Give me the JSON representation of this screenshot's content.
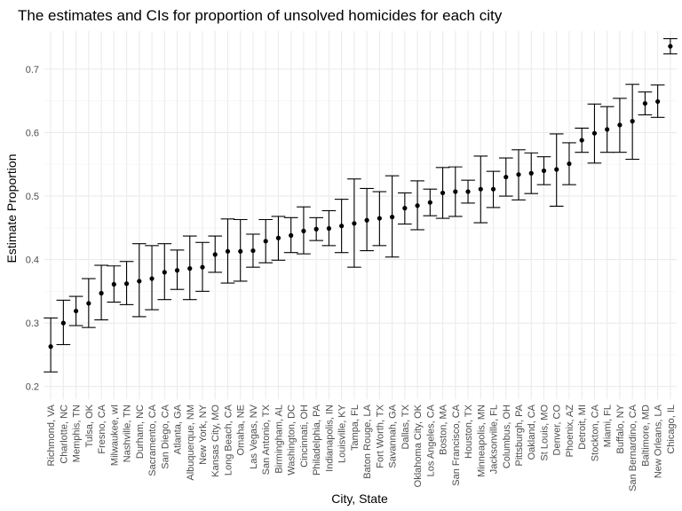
{
  "chart_data": {
    "type": "scatter",
    "title": "The estimates and CIs for proportion of unsolved homicides for each city",
    "xlabel": "City, State",
    "ylabel": "Estimate Proportion",
    "ylim": [
      0.18,
      0.76
    ],
    "yticks": [
      0.2,
      0.3,
      0.4,
      0.5,
      0.6,
      0.7
    ],
    "yticks_labels": [
      "0.2",
      "0.3",
      "0.4",
      "0.5",
      "0.6",
      "0.7"
    ],
    "grid": true,
    "legend": "none",
    "colors": {
      "point": "#000000",
      "errorbar": "#000000",
      "grid_major": "#ebebeb",
      "grid_minor": "#f5f5f5"
    },
    "categories": [
      "Richmond, VA",
      "Charlotte, NC",
      "Memphis, TN",
      "Tulsa, OK",
      "Fresno, CA",
      "Milwaukee, wI",
      "Nashville, TN",
      "Durham, NC",
      "Sacramento, CA",
      "San Diego, CA",
      "Atlanta, GA",
      "Albuquerque, NM",
      "New York, NY",
      "Kansas City, MO",
      "Long Beach, CA",
      "Omaha, NE",
      "Las Vegas, NV",
      "San Antonio, TX",
      "Birmingham, AL",
      "Washington, DC",
      "Cincinnati, OH",
      "Philadelphia, PA",
      "Indianapolis, IN",
      "Louisville, KY",
      "Tampa, FL",
      "Baton Rouge, LA",
      "Fort Worth, TX",
      "Savannah, GA",
      "Dallas, TX",
      "Oklahoma City, OK",
      "Los Angeles, CA",
      "Boston, MA",
      "San Francisco, CA",
      "Houston, TX",
      "Minneapolis, MN",
      "Jacksonville, FL",
      "Columbus, OH",
      "Pittsburgh, PA",
      "Oakland, CA",
      "St Louis, MO",
      "Denver, CO",
      "Phoenix, AZ",
      "Detroit, MI",
      "Stockton, CA",
      "Miami, FL",
      "Buffalo, NY",
      "San Bernardino, CA",
      "Baltimore, MD",
      "New Orleans, LA",
      "Chicago, IL"
    ],
    "series": [
      {
        "estimate": [
          0.263,
          0.3,
          0.319,
          0.331,
          0.347,
          0.361,
          0.362,
          0.366,
          0.37,
          0.38,
          0.383,
          0.386,
          0.388,
          0.408,
          0.413,
          0.413,
          0.414,
          0.429,
          0.434,
          0.438,
          0.445,
          0.448,
          0.449,
          0.453,
          0.457,
          0.462,
          0.465,
          0.467,
          0.481,
          0.485,
          0.49,
          0.505,
          0.507,
          0.507,
          0.511,
          0.511,
          0.53,
          0.534,
          0.536,
          0.54,
          0.542,
          0.551,
          0.588,
          0.599,
          0.605,
          0.612,
          0.618,
          0.646,
          0.649,
          0.736
        ],
        "lower": [
          0.223,
          0.266,
          0.296,
          0.293,
          0.305,
          0.333,
          0.329,
          0.31,
          0.321,
          0.337,
          0.353,
          0.337,
          0.35,
          0.38,
          0.363,
          0.366,
          0.388,
          0.395,
          0.399,
          0.411,
          0.409,
          0.43,
          0.422,
          0.411,
          0.388,
          0.414,
          0.422,
          0.404,
          0.456,
          0.447,
          0.469,
          0.465,
          0.468,
          0.489,
          0.458,
          0.482,
          0.5,
          0.494,
          0.504,
          0.518,
          0.484,
          0.518,
          0.569,
          0.552,
          0.569,
          0.569,
          0.558,
          0.628,
          0.624,
          0.724
        ],
        "upper": [
          0.308,
          0.336,
          0.342,
          0.37,
          0.391,
          0.39,
          0.397,
          0.425,
          0.422,
          0.425,
          0.415,
          0.437,
          0.427,
          0.437,
          0.464,
          0.463,
          0.44,
          0.463,
          0.468,
          0.466,
          0.483,
          0.466,
          0.477,
          0.495,
          0.527,
          0.512,
          0.507,
          0.532,
          0.505,
          0.524,
          0.511,
          0.545,
          0.546,
          0.525,
          0.563,
          0.539,
          0.56,
          0.573,
          0.568,
          0.562,
          0.598,
          0.584,
          0.607,
          0.645,
          0.641,
          0.654,
          0.676,
          0.664,
          0.675,
          0.748
        ]
      }
    ]
  }
}
